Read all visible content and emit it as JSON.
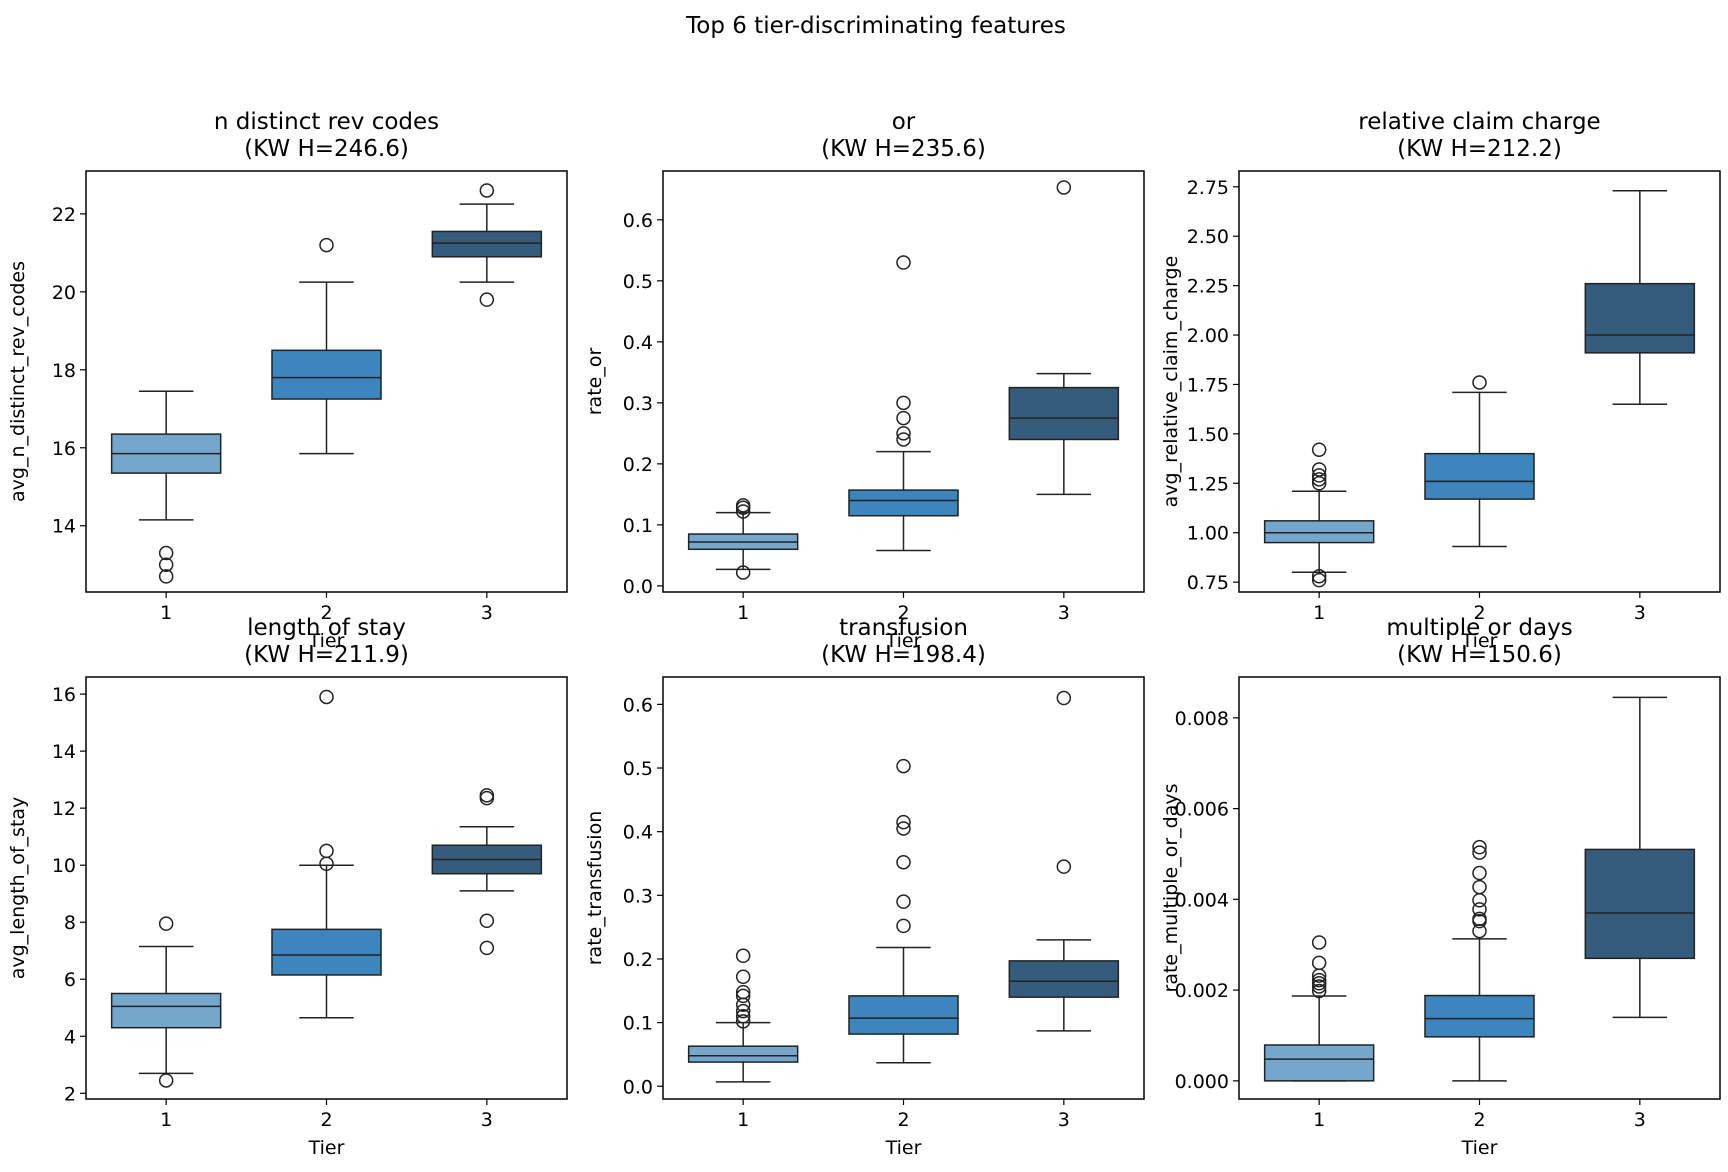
{
  "colors": {
    "tier1": "#75a7cc",
    "tier2": "#3d85bd",
    "tier3": "#355c7d"
  },
  "suptitle": "Top 6 tier-discriminating features",
  "chart_data": [
    {
      "type": "box",
      "title": "n distinct rev codes",
      "subtitle": "(KW H=246.6)",
      "xlabel": "Tier",
      "ylabel": "avg_n_distinct_rev_codes",
      "categories": [
        "1",
        "2",
        "3"
      ],
      "ylim": [
        12.3,
        23.1
      ],
      "yticks": [
        14,
        16,
        18,
        20,
        22
      ],
      "tickfmt": 0,
      "boxes": [
        {
          "whislo": 14.15,
          "q1": 15.35,
          "med": 15.85,
          "q3": 16.35,
          "whishi": 17.45,
          "fliers": [
            13.3,
            13.0,
            12.7
          ]
        },
        {
          "whislo": 15.85,
          "q1": 17.25,
          "med": 17.8,
          "q3": 18.5,
          "whishi": 20.25,
          "fliers": [
            21.2
          ]
        },
        {
          "whislo": 20.25,
          "q1": 20.9,
          "med": 21.25,
          "q3": 21.55,
          "whishi": 22.25,
          "fliers": [
            22.6,
            19.8
          ]
        }
      ]
    },
    {
      "type": "box",
      "title": "or",
      "subtitle": "(KW H=235.6)",
      "xlabel": "Tier",
      "ylabel": "rate_or",
      "categories": [
        "1",
        "2",
        "3"
      ],
      "ylim": [
        -0.01,
        0.68
      ],
      "yticks": [
        0.0,
        0.1,
        0.2,
        0.3,
        0.4,
        0.5,
        0.6
      ],
      "tickfmt": 1,
      "boxes": [
        {
          "whislo": 0.027,
          "q1": 0.06,
          "med": 0.072,
          "q3": 0.085,
          "whishi": 0.12,
          "fliers": [
            0.022,
            0.122,
            0.128,
            0.132
          ]
        },
        {
          "whislo": 0.058,
          "q1": 0.115,
          "med": 0.14,
          "q3": 0.157,
          "whishi": 0.22,
          "fliers": [
            0.24,
            0.25,
            0.275,
            0.3,
            0.53
          ]
        },
        {
          "whislo": 0.15,
          "q1": 0.24,
          "med": 0.275,
          "q3": 0.325,
          "whishi": 0.348,
          "fliers": [
            0.653
          ]
        }
      ]
    },
    {
      "type": "box",
      "title": "relative claim charge",
      "subtitle": "(KW H=212.2)",
      "xlabel": "Tier",
      "ylabel": "avg_relative_claim_charge",
      "categories": [
        "1",
        "2",
        "3"
      ],
      "ylim": [
        0.7,
        2.83
      ],
      "yticks": [
        0.75,
        1.0,
        1.25,
        1.5,
        1.75,
        2.0,
        2.25,
        2.5,
        2.75
      ],
      "tickfmt": 2,
      "boxes": [
        {
          "whislo": 0.8,
          "q1": 0.95,
          "med": 1.0,
          "q3": 1.06,
          "whishi": 1.21,
          "fliers": [
            0.76,
            0.78,
            1.25,
            1.27,
            1.29,
            1.32,
            1.42
          ]
        },
        {
          "whislo": 0.93,
          "q1": 1.17,
          "med": 1.26,
          "q3": 1.4,
          "whishi": 1.71,
          "fliers": [
            1.76
          ]
        },
        {
          "whislo": 1.65,
          "q1": 1.91,
          "med": 2.0,
          "q3": 2.26,
          "whishi": 2.73,
          "fliers": []
        }
      ]
    },
    {
      "type": "box",
      "title": "length of stay",
      "subtitle": "(KW H=211.9)",
      "xlabel": "Tier",
      "ylabel": "avg_length_of_stay",
      "categories": [
        "1",
        "2",
        "3"
      ],
      "ylim": [
        1.8,
        16.6
      ],
      "yticks": [
        2,
        4,
        6,
        8,
        10,
        12,
        14,
        16
      ],
      "tickfmt": 0,
      "boxes": [
        {
          "whislo": 2.7,
          "q1": 4.3,
          "med": 5.05,
          "q3": 5.5,
          "whishi": 7.15,
          "fliers": [
            2.45,
            7.95
          ]
        },
        {
          "whislo": 4.65,
          "q1": 6.15,
          "med": 6.85,
          "q3": 7.75,
          "whishi": 10.0,
          "fliers": [
            10.05,
            10.5,
            15.9
          ]
        },
        {
          "whislo": 9.1,
          "q1": 9.7,
          "med": 10.2,
          "q3": 10.7,
          "whishi": 11.35,
          "fliers": [
            7.1,
            8.05,
            12.35,
            12.45
          ]
        }
      ]
    },
    {
      "type": "box",
      "title": "transfusion",
      "subtitle": "(KW H=198.4)",
      "xlabel": "Tier",
      "ylabel": "rate_transfusion",
      "categories": [
        "1",
        "2",
        "3"
      ],
      "ylim": [
        -0.02,
        0.643
      ],
      "yticks": [
        0.0,
        0.1,
        0.2,
        0.3,
        0.4,
        0.5,
        0.6
      ],
      "tickfmt": 1,
      "boxes": [
        {
          "whislo": 0.007,
          "q1": 0.038,
          "med": 0.048,
          "q3": 0.063,
          "whishi": 0.1,
          "fliers": [
            0.102,
            0.11,
            0.118,
            0.128,
            0.142,
            0.148,
            0.172,
            0.205
          ]
        },
        {
          "whislo": 0.037,
          "q1": 0.082,
          "med": 0.107,
          "q3": 0.142,
          "whishi": 0.218,
          "fliers": [
            0.252,
            0.29,
            0.352,
            0.405,
            0.415,
            0.503
          ]
        },
        {
          "whislo": 0.087,
          "q1": 0.14,
          "med": 0.165,
          "q3": 0.197,
          "whishi": 0.23,
          "fliers": [
            0.345,
            0.61
          ]
        }
      ]
    },
    {
      "type": "box",
      "title": "multiple or days",
      "subtitle": "(KW H=150.6)",
      "xlabel": "Tier",
      "ylabel": "rate_multiple_or_days",
      "categories": [
        "1",
        "2",
        "3"
      ],
      "ylim": [
        -0.0004,
        0.0089
      ],
      "yticks": [
        0.0,
        0.002,
        0.004,
        0.006,
        0.008
      ],
      "tickfmt": 3,
      "boxes": [
        {
          "whislo": 0.0,
          "q1": 0.0,
          "med": 0.00048,
          "q3": 0.00079,
          "whishi": 0.00187,
          "fliers": [
            0.00198,
            0.00208,
            0.00215,
            0.00222,
            0.00232,
            0.0026,
            0.00305
          ]
        },
        {
          "whislo": 0.0,
          "q1": 0.00097,
          "med": 0.00137,
          "q3": 0.00188,
          "whishi": 0.00313,
          "fliers": [
            0.0033,
            0.00352,
            0.00357,
            0.00378,
            0.00398,
            0.00427,
            0.00458,
            0.00503,
            0.00515
          ]
        },
        {
          "whislo": 0.0014,
          "q1": 0.0027,
          "med": 0.0037,
          "q3": 0.0051,
          "whishi": 0.00845,
          "fliers": []
        }
      ]
    }
  ]
}
